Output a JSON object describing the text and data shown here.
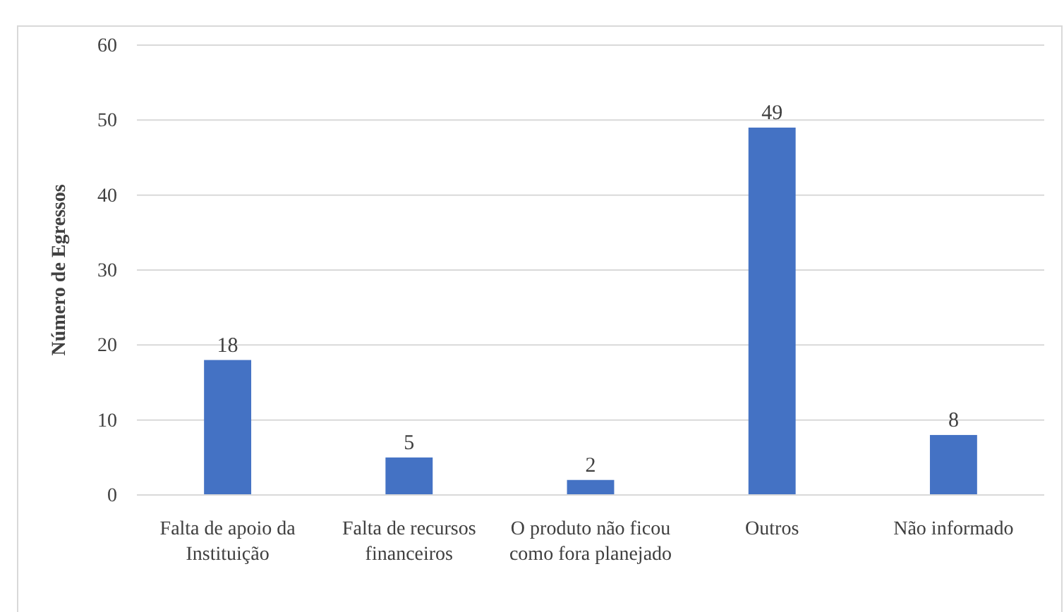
{
  "chart_data": {
    "type": "bar",
    "ylabel": "Número de Egressos",
    "categories": [
      "Falta de apoio da Instituição",
      "Falta de recursos financeiros",
      "O produto não ficou como fora planejado",
      "Outros",
      "Não informado"
    ],
    "values": [
      18,
      5,
      2,
      49,
      8
    ],
    "color": "#4472c4",
    "ylim": [
      0,
      60
    ],
    "yticks": [
      0,
      10,
      20,
      30,
      40,
      50,
      60
    ],
    "grid": "y",
    "data_labels": true
  }
}
